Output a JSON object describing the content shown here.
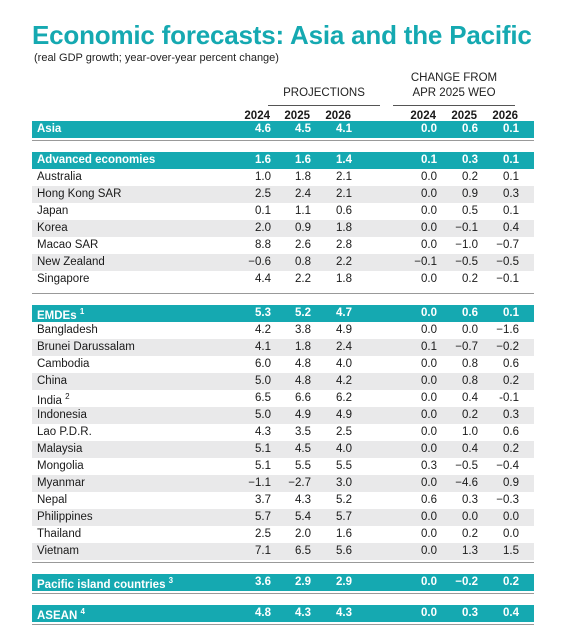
{
  "title": "Economic forecasts: Asia and the Pacific",
  "subtitle": "(real GDP growth; year-over-year percent change)",
  "headers": {
    "projections": "PROJECTIONS",
    "change_line1": "CHANGE FROM",
    "change_line2": "APR 2025 WEO",
    "years": [
      "2024",
      "2025",
      "2026",
      "2024",
      "2025",
      "2026"
    ]
  },
  "rows": [
    {
      "label": "Asia",
      "sup": "",
      "type": "band",
      "values": [
        "4.6",
        "4.5",
        "4.1",
        "0.0",
        "0.6",
        "0.1"
      ]
    },
    {
      "label": "Advanced economies",
      "sup": "",
      "type": "band",
      "values": [
        "1.6",
        "1.6",
        "1.4",
        "0.1",
        "0.3",
        "0.1"
      ]
    },
    {
      "label": "Australia",
      "sup": "",
      "type": "plain",
      "values": [
        "1.0",
        "1.8",
        "2.1",
        "0.0",
        "0.2",
        "0.1"
      ]
    },
    {
      "label": "Hong Kong SAR",
      "sup": "",
      "type": "alt",
      "values": [
        "2.5",
        "2.4",
        "2.1",
        "0.0",
        "0.9",
        "0.3"
      ]
    },
    {
      "label": "Japan",
      "sup": "",
      "type": "plain",
      "values": [
        "0.1",
        "1.1",
        "0.6",
        "0.0",
        "0.5",
        "0.1"
      ]
    },
    {
      "label": "Korea",
      "sup": "",
      "type": "alt",
      "values": [
        "2.0",
        "0.9",
        "1.8",
        "0.0",
        "−0.1",
        "0.4"
      ]
    },
    {
      "label": "Macao SAR",
      "sup": "",
      "type": "plain",
      "values": [
        "8.8",
        "2.6",
        "2.8",
        "0.0",
        "−1.0",
        "−0.7"
      ]
    },
    {
      "label": "New Zealand",
      "sup": "",
      "type": "alt",
      "values": [
        "−0.6",
        "0.8",
        "2.2",
        "−0.1",
        "−0.5",
        "−0.5"
      ]
    },
    {
      "label": "Singapore",
      "sup": "",
      "type": "plain",
      "values": [
        "4.4",
        "2.2",
        "1.8",
        "0.0",
        "0.2",
        "−0.1"
      ]
    },
    {
      "label": "EMDEs",
      "sup": "1",
      "type": "band",
      "values": [
        "5.3",
        "5.2",
        "4.7",
        "0.0",
        "0.6",
        "0.1"
      ]
    },
    {
      "label": "Bangladesh",
      "sup": "",
      "type": "plain",
      "values": [
        "4.2",
        "3.8",
        "4.9",
        "0.0",
        "0.0",
        "−1.6"
      ]
    },
    {
      "label": "Brunei Darussalam",
      "sup": "",
      "type": "alt",
      "values": [
        "4.1",
        "1.8",
        "2.4",
        "0.1",
        "−0.7",
        "−0.2"
      ]
    },
    {
      "label": "Cambodia",
      "sup": "",
      "type": "plain",
      "values": [
        "6.0",
        "4.8",
        "4.0",
        "0.0",
        "0.8",
        "0.6"
      ]
    },
    {
      "label": "China",
      "sup": "",
      "type": "alt",
      "values": [
        "5.0",
        "4.8",
        "4.2",
        "0.0",
        "0.8",
        "0.2"
      ]
    },
    {
      "label": "India",
      "sup": "2",
      "type": "plain",
      "values": [
        "6.5",
        "6.6",
        "6.2",
        "0.0",
        "0.4",
        "-0.1"
      ]
    },
    {
      "label": "Indonesia",
      "sup": "",
      "type": "alt",
      "values": [
        "5.0",
        "4.9",
        "4.9",
        "0.0",
        "0.2",
        "0.3"
      ]
    },
    {
      "label": "Lao P.D.R.",
      "sup": "",
      "type": "plain",
      "values": [
        "4.3",
        "3.5",
        "2.5",
        "0.0",
        "1.0",
        "0.6"
      ]
    },
    {
      "label": "Malaysia",
      "sup": "",
      "type": "alt",
      "values": [
        "5.1",
        "4.5",
        "4.0",
        "0.0",
        "0.4",
        "0.2"
      ]
    },
    {
      "label": "Mongolia",
      "sup": "",
      "type": "plain",
      "values": [
        "5.1",
        "5.5",
        "5.5",
        "0.3",
        "−0.5",
        "−0.4"
      ]
    },
    {
      "label": "Myanmar",
      "sup": "",
      "type": "alt",
      "values": [
        "−1.1",
        "−2.7",
        "3.0",
        "0.0",
        "−4.6",
        "0.9"
      ]
    },
    {
      "label": "Nepal",
      "sup": "",
      "type": "plain",
      "values": [
        "3.7",
        "4.3",
        "5.2",
        "0.6",
        "0.3",
        "−0.3"
      ]
    },
    {
      "label": "Philippines",
      "sup": "",
      "type": "alt",
      "values": [
        "5.7",
        "5.4",
        "5.7",
        "0.0",
        "0.0",
        "0.0"
      ]
    },
    {
      "label": "Thailand",
      "sup": "",
      "type": "plain",
      "values": [
        "2.5",
        "2.0",
        "1.6",
        "0.0",
        "0.2",
        "0.0"
      ]
    },
    {
      "label": "Vietnam",
      "sup": "",
      "type": "alt",
      "values": [
        "7.1",
        "6.5",
        "5.6",
        "0.0",
        "1.3",
        "1.5"
      ]
    },
    {
      "label": "Pacific island countries",
      "sup": "3",
      "type": "band",
      "values": [
        "3.6",
        "2.9",
        "2.9",
        "0.0",
        "−0.2",
        "0.2"
      ]
    },
    {
      "label": "ASEAN",
      "sup": "4",
      "type": "band",
      "values": [
        "4.8",
        "4.3",
        "4.3",
        "0.0",
        "0.3",
        "0.4"
      ]
    }
  ],
  "colors": {
    "accent": "#15a9b1",
    "alt_row": "#e9e9ea",
    "text": "#1a1a1a"
  }
}
